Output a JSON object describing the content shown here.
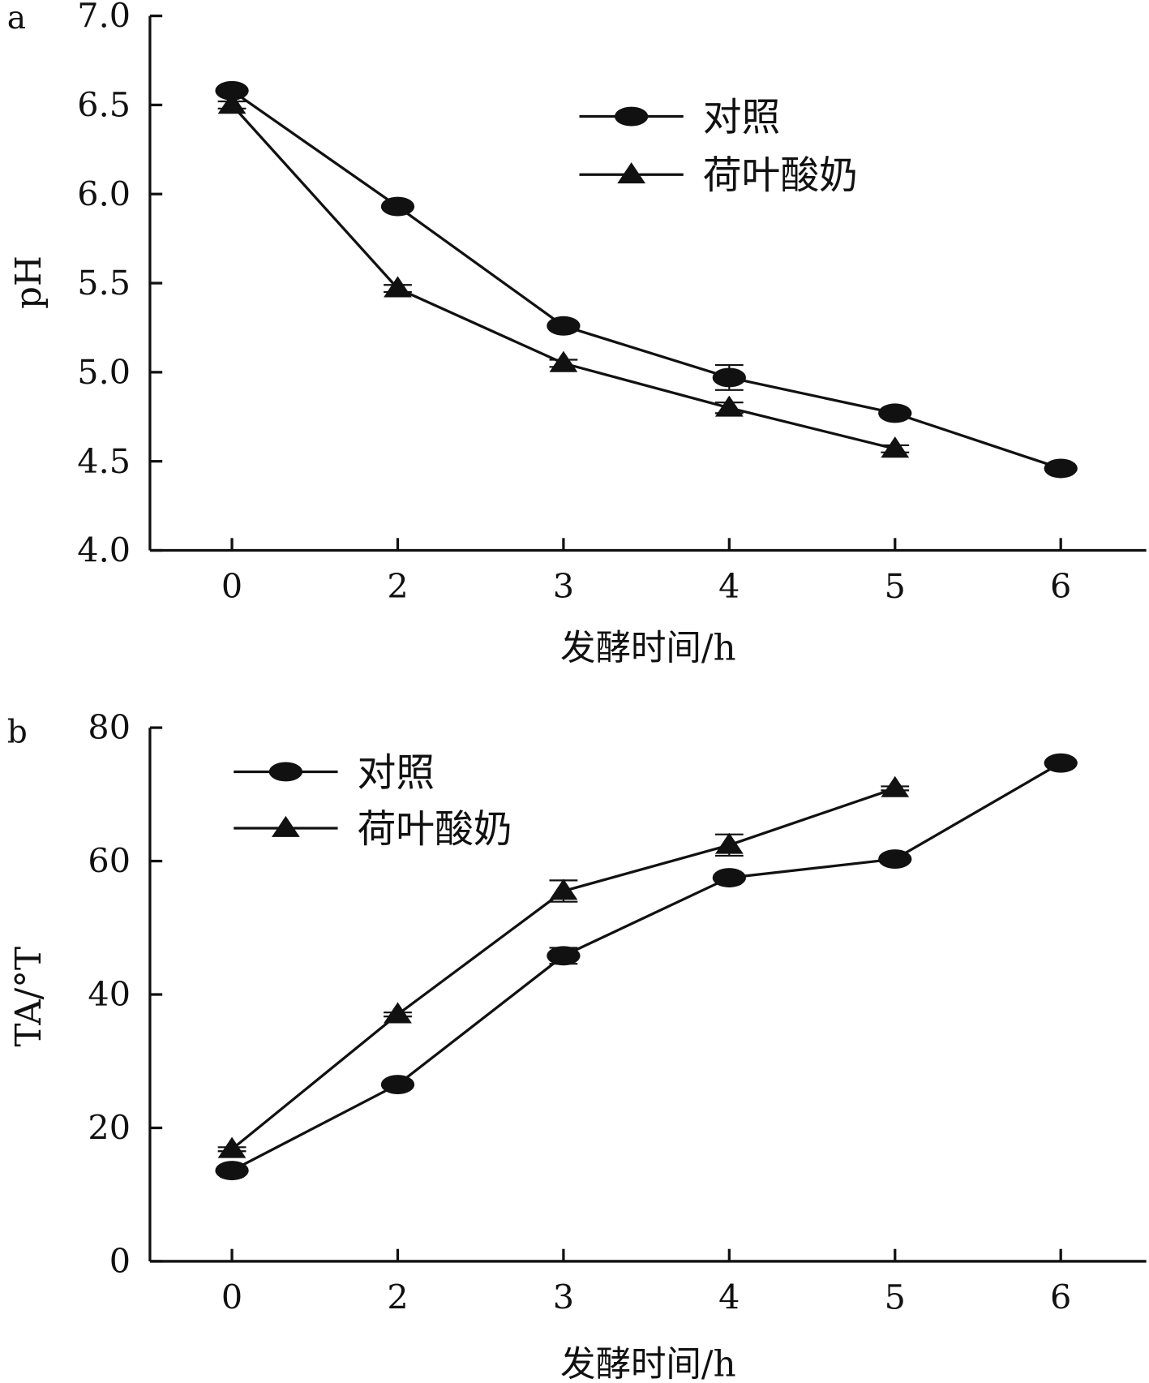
{
  "chart_data": [
    {
      "panel_label": "a",
      "type": "line",
      "xlabel": "发酵时间/h",
      "ylabel": "pH",
      "categories": [
        "0",
        "2",
        "3",
        "4",
        "5",
        "6"
      ],
      "yticks": [
        "4.0",
        "4.5",
        "5.0",
        "5.5",
        "6.0",
        "6.5",
        "7.0"
      ],
      "ylim": [
        4.0,
        7.0
      ],
      "legend_position": "top-right",
      "series": [
        {
          "name": "对照",
          "marker": "circle",
          "values": [
            6.58,
            5.93,
            5.26,
            4.97,
            4.77,
            4.46
          ],
          "errors": [
            0.02,
            0.02,
            0.02,
            0.07,
            0.02,
            0.02
          ]
        },
        {
          "name": "荷叶酸奶",
          "marker": "triangle",
          "values": [
            6.5,
            5.47,
            5.05,
            4.8,
            4.57,
            null
          ],
          "errors": [
            0.02,
            0.02,
            0.02,
            0.03,
            0.02,
            null
          ]
        }
      ]
    },
    {
      "panel_label": "b",
      "type": "line",
      "xlabel": "发酵时间/h",
      "ylabel": "TA/°T",
      "categories": [
        "0",
        "2",
        "3",
        "4",
        "5",
        "6"
      ],
      "yticks": [
        "0",
        "20",
        "40",
        "60",
        "80"
      ],
      "ylim": [
        0,
        80
      ],
      "legend_position": "top-left",
      "series": [
        {
          "name": "对照",
          "marker": "circle",
          "values": [
            13.6,
            26.5,
            45.8,
            57.5,
            60.3,
            74.7
          ],
          "errors": [
            0.3,
            0.3,
            1.2,
            0.3,
            0.3,
            0.3
          ]
        },
        {
          "name": "荷叶酸奶",
          "marker": "triangle",
          "values": [
            16.8,
            37.0,
            55.5,
            62.4,
            70.9,
            null
          ],
          "errors": [
            0.3,
            0.3,
            1.6,
            1.6,
            0.3,
            null
          ]
        }
      ]
    }
  ]
}
